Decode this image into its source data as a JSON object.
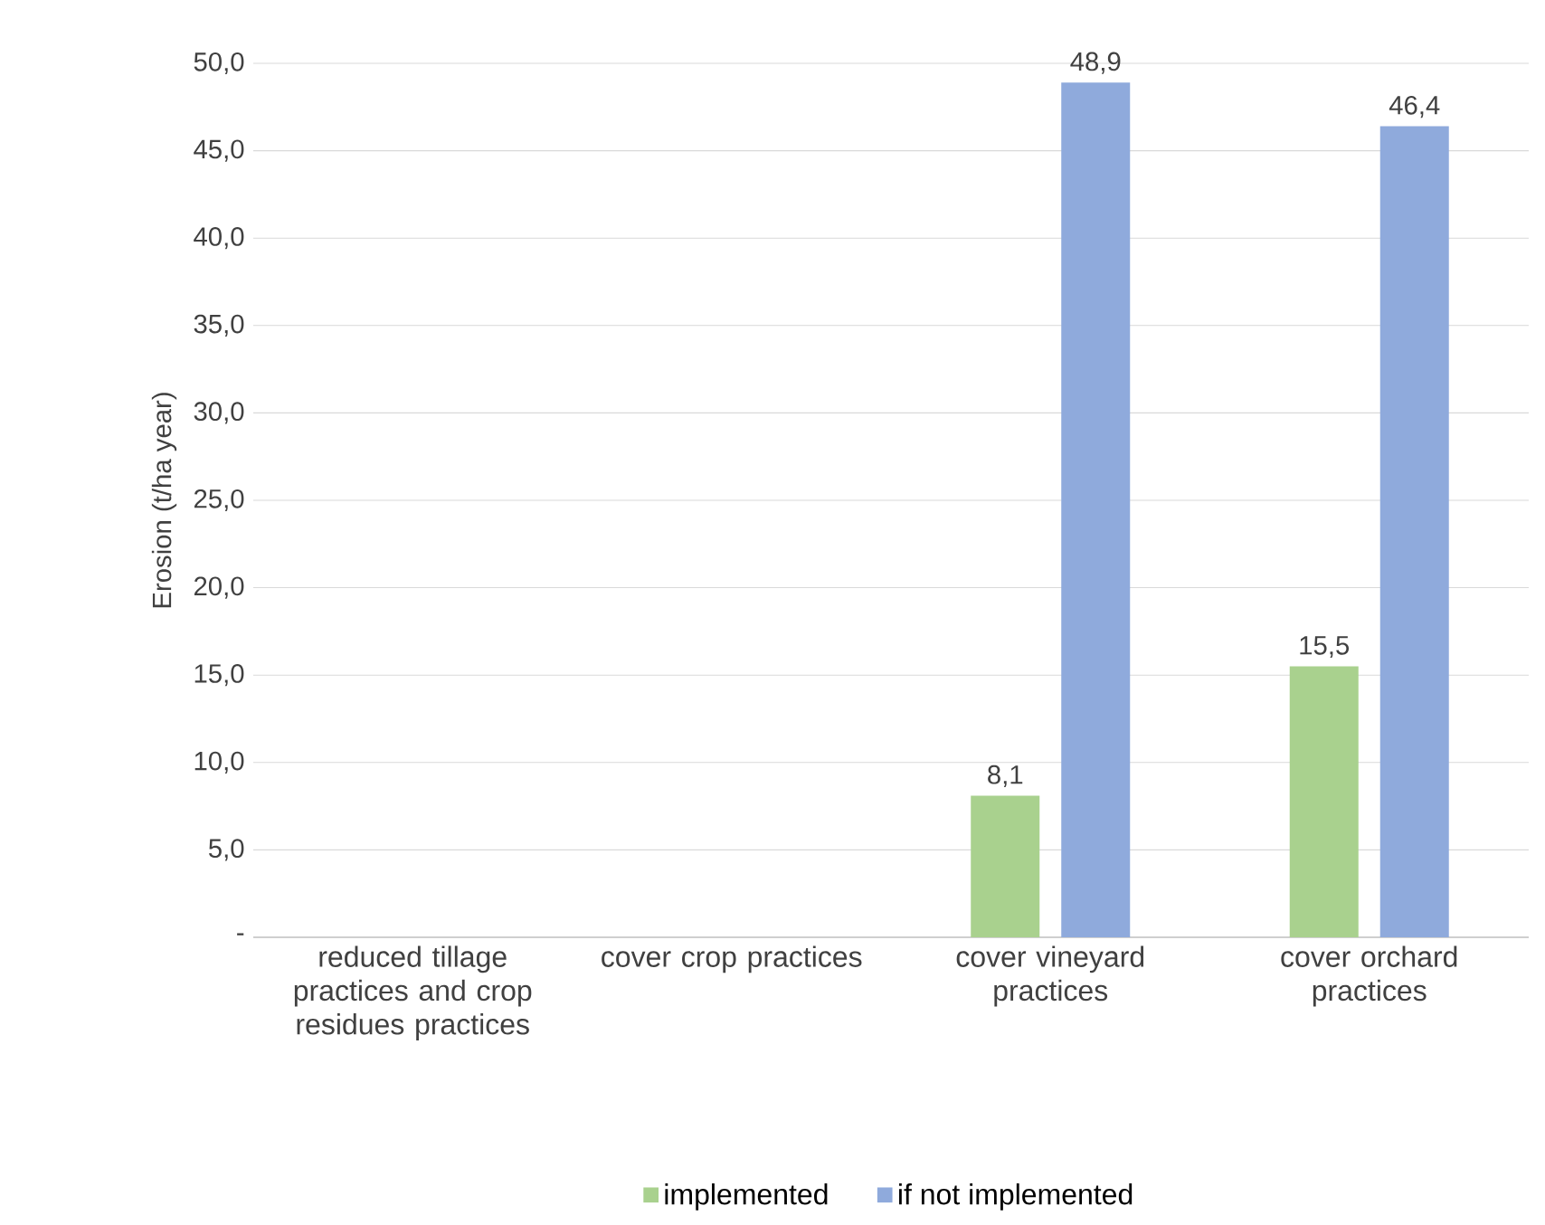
{
  "chart_data": {
    "type": "bar",
    "ylabel": "Erosion (t/ha year)",
    "categories": [
      "reduced tillage practices and crop residues practices",
      "cover crop practices",
      "cover vineyard practices",
      "cover orchard practices"
    ],
    "series": [
      {
        "name": "implemented",
        "color": "#a9d18e",
        "values": [
          null,
          null,
          8.1,
          15.5
        ],
        "value_labels": [
          null,
          null,
          "8,1",
          "15,5"
        ]
      },
      {
        "name": "if not implemented",
        "color": "#8faadc",
        "values": [
          null,
          null,
          48.9,
          46.4
        ],
        "value_labels": [
          null,
          null,
          "48,9",
          "46,4"
        ]
      }
    ],
    "ylim": [
      0,
      50
    ],
    "yticks": [
      {
        "value": 0,
        "label": "-"
      },
      {
        "value": 5,
        "label": "5,0"
      },
      {
        "value": 10,
        "label": "10,0"
      },
      {
        "value": 15,
        "label": "15,0"
      },
      {
        "value": 20,
        "label": "20,0"
      },
      {
        "value": 25,
        "label": "25,0"
      },
      {
        "value": 30,
        "label": "30,0"
      },
      {
        "value": 35,
        "label": "35,0"
      },
      {
        "value": 40,
        "label": "40,0"
      },
      {
        "value": 45,
        "label": "45,0"
      },
      {
        "value": 50,
        "label": "50,0"
      }
    ],
    "grid": "y",
    "legend": "bottom"
  }
}
